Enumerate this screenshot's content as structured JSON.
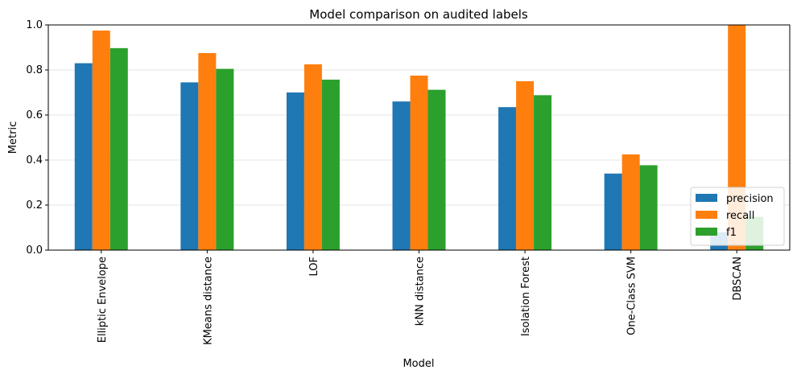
{
  "chart_data": {
    "type": "bar",
    "title": "Model comparison on audited labels",
    "xlabel": "Model",
    "ylabel": "Metric",
    "ylim": [
      0,
      1.0
    ],
    "yticks": [
      "0.0",
      "0.2",
      "0.4",
      "0.6",
      "0.8",
      "1.0"
    ],
    "grid": "y",
    "legend_position": "lower right",
    "categories": [
      "Elliptic Envelope",
      "KMeans distance",
      "LOF",
      "kNN distance",
      "Isolation Forest",
      "One-Class SVM",
      "DBSCAN"
    ],
    "series": [
      {
        "name": "precision",
        "color": "#1f77b4",
        "values": [
          0.83,
          0.745,
          0.7,
          0.66,
          0.635,
          0.34,
          0.08
        ]
      },
      {
        "name": "recall",
        "color": "#ff7f0e",
        "values": [
          0.975,
          0.875,
          0.825,
          0.775,
          0.75,
          0.425,
          1.0
        ]
      },
      {
        "name": "f1",
        "color": "#2ca02c",
        "values": [
          0.897,
          0.805,
          0.757,
          0.712,
          0.688,
          0.377,
          0.148
        ]
      }
    ]
  }
}
